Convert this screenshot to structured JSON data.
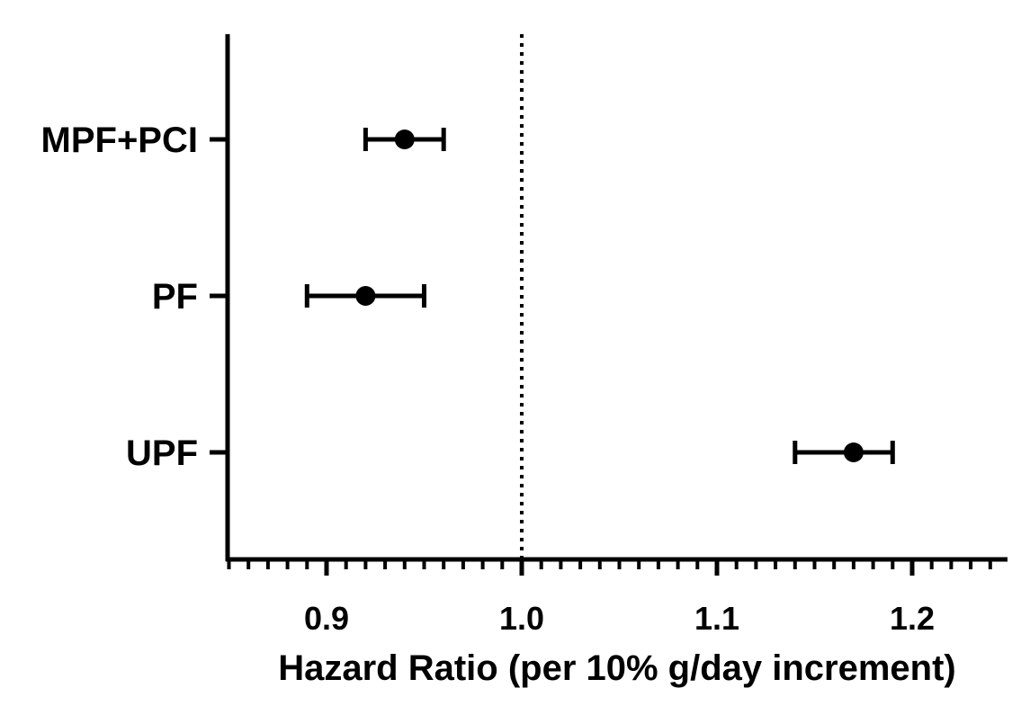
{
  "chart_data": {
    "type": "forest",
    "title": "",
    "xlabel": "Hazard Ratio (per 10% g/day increment)",
    "ylabel": "",
    "xlim": [
      0.85,
      1.25
    ],
    "x_ticks": [
      0.9,
      1.0,
      1.1,
      1.2
    ],
    "x_tick_labels": [
      "0.9",
      "1.0",
      "1.1",
      "1.2"
    ],
    "minor_tick_step": 0.01,
    "reference_line": 1.0,
    "grid": false,
    "legend": "none",
    "categories": [
      "MPF+PCI",
      "PF",
      "UPF"
    ],
    "points": [
      {
        "label": "MPF+PCI",
        "estimate": 0.94,
        "lower": 0.92,
        "upper": 0.96
      },
      {
        "label": "PF",
        "estimate": 0.92,
        "lower": 0.89,
        "upper": 0.95
      },
      {
        "label": "UPF",
        "estimate": 1.17,
        "lower": 1.14,
        "upper": 1.19
      }
    ],
    "marker_color": "#000000"
  }
}
